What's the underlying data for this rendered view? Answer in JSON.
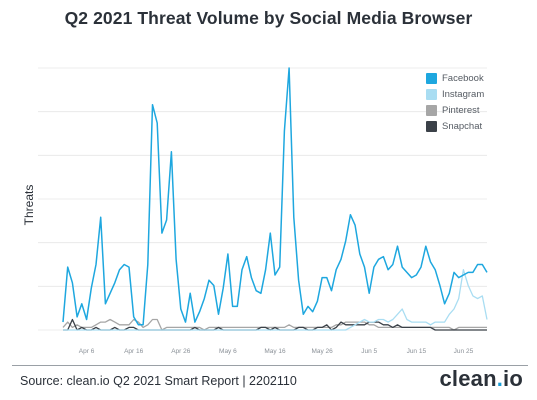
{
  "title": "Q2 2021 Threat Volume by Social Media Browser",
  "footer": {
    "source": "Source: clean.io Q2 2021 Smart Report | 2202110",
    "brand_prefix": "clean",
    "brand_dot": ".",
    "brand_suffix": "io"
  },
  "colors": {
    "Facebook": "#1ea7df",
    "Instagram": "#a9ddf2",
    "Pinterest": "#a6a6a6",
    "Snapchat": "#3b4148",
    "gridline": "#e6e6e6",
    "text": "#2b3139"
  },
  "chart_data": {
    "type": "line",
    "title": "Q2 2021 Threat Volume by Social Media Browser",
    "xlabel": "",
    "ylabel": "Threats",
    "grid": true,
    "legend_position": "top-right",
    "x_ticks": [
      "Apr 6",
      "Apr 16",
      "Apr 26",
      "May 6",
      "May 16",
      "May 26",
      "Jun 5",
      "Jun 15",
      "Jun 25"
    ],
    "x_tick_index": [
      5,
      15,
      25,
      35,
      45,
      55,
      65,
      75,
      85
    ],
    "x_note": "daily points from Apr 1 to Jun 30 2021 (index 0 = Apr 1); y axis has no printed tick values, values are relative (0-100 scale)",
    "ylim": [
      0,
      100
    ],
    "series": [
      {
        "name": "Facebook",
        "values": [
          3,
          24,
          18,
          5,
          10,
          4,
          16,
          25,
          43,
          10,
          14,
          18,
          23,
          25,
          24,
          5,
          2,
          2,
          25,
          86,
          79,
          37,
          42,
          68,
          27,
          8,
          3,
          14,
          3,
          7,
          12,
          19,
          17,
          6,
          16,
          29,
          9,
          9,
          23,
          28,
          20,
          15,
          14,
          23,
          37,
          21,
          24,
          76,
          100,
          43,
          19,
          6,
          9,
          7,
          11,
          20,
          20,
          15,
          23,
          27,
          34,
          44,
          40,
          29,
          24,
          14,
          24,
          27,
          28,
          23,
          25,
          32,
          24,
          22,
          20,
          21,
          24,
          32,
          26,
          23,
          17,
          10,
          14,
          22,
          20,
          21,
          22,
          22,
          25,
          25,
          22
        ]
      },
      {
        "name": "Instagram",
        "values": [
          0,
          0,
          0,
          0,
          0,
          0,
          0,
          0,
          0,
          0,
          0,
          0,
          0,
          0,
          0,
          0,
          0,
          0,
          0,
          0,
          0,
          0,
          0,
          0,
          0,
          0,
          0,
          0,
          0,
          0,
          0,
          0,
          0,
          0,
          0,
          0,
          0,
          0,
          0,
          0,
          0,
          0,
          0,
          0,
          0,
          0,
          0,
          0,
          0,
          0,
          0,
          0,
          0,
          0,
          0,
          0,
          0,
          0,
          0,
          0,
          0,
          1,
          2,
          3,
          4,
          3,
          3,
          4,
          4,
          3,
          4,
          6,
          8,
          4,
          3,
          3,
          3,
          3,
          2,
          3,
          3,
          3,
          6,
          8,
          12,
          23,
          17,
          13,
          12,
          13,
          4
        ]
      },
      {
        "name": "Pinterest",
        "values": [
          1,
          3,
          1,
          2,
          1,
          1,
          1,
          2,
          3,
          3,
          4,
          3,
          2,
          2,
          2,
          4,
          3,
          1,
          2,
          4,
          4,
          0,
          1,
          1,
          1,
          1,
          1,
          1,
          1,
          1,
          0,
          1,
          1,
          1,
          1,
          1,
          1,
          1,
          1,
          1,
          1,
          1,
          1,
          1,
          1,
          1,
          1,
          1,
          2,
          1,
          1,
          1,
          1,
          1,
          1,
          1,
          1,
          1,
          2,
          2,
          3,
          3,
          3,
          3,
          3,
          2,
          2,
          1,
          1,
          1,
          1,
          1,
          1,
          1,
          1,
          1,
          1,
          1,
          1,
          1,
          1,
          1,
          1,
          0,
          1,
          1,
          1,
          1,
          1,
          1,
          1
        ]
      },
      {
        "name": "Snapchat",
        "values": [
          0,
          0,
          4,
          0,
          1,
          0,
          0,
          1,
          0,
          0,
          0,
          1,
          0,
          0,
          1,
          1,
          0,
          0,
          0,
          0,
          0,
          0,
          0,
          0,
          0,
          0,
          0,
          0,
          1,
          0,
          0,
          0,
          0,
          1,
          0,
          0,
          0,
          0,
          0,
          0,
          0,
          0,
          1,
          1,
          0,
          1,
          0,
          0,
          0,
          0,
          1,
          1,
          0,
          0,
          1,
          1,
          2,
          0,
          1,
          3,
          2,
          2,
          2,
          2,
          2,
          3,
          3,
          3,
          2,
          2,
          1,
          2,
          1,
          1,
          1,
          1,
          1,
          1,
          1,
          0,
          0,
          0,
          0,
          0,
          0,
          0,
          0,
          0,
          0,
          0,
          0
        ]
      }
    ]
  }
}
